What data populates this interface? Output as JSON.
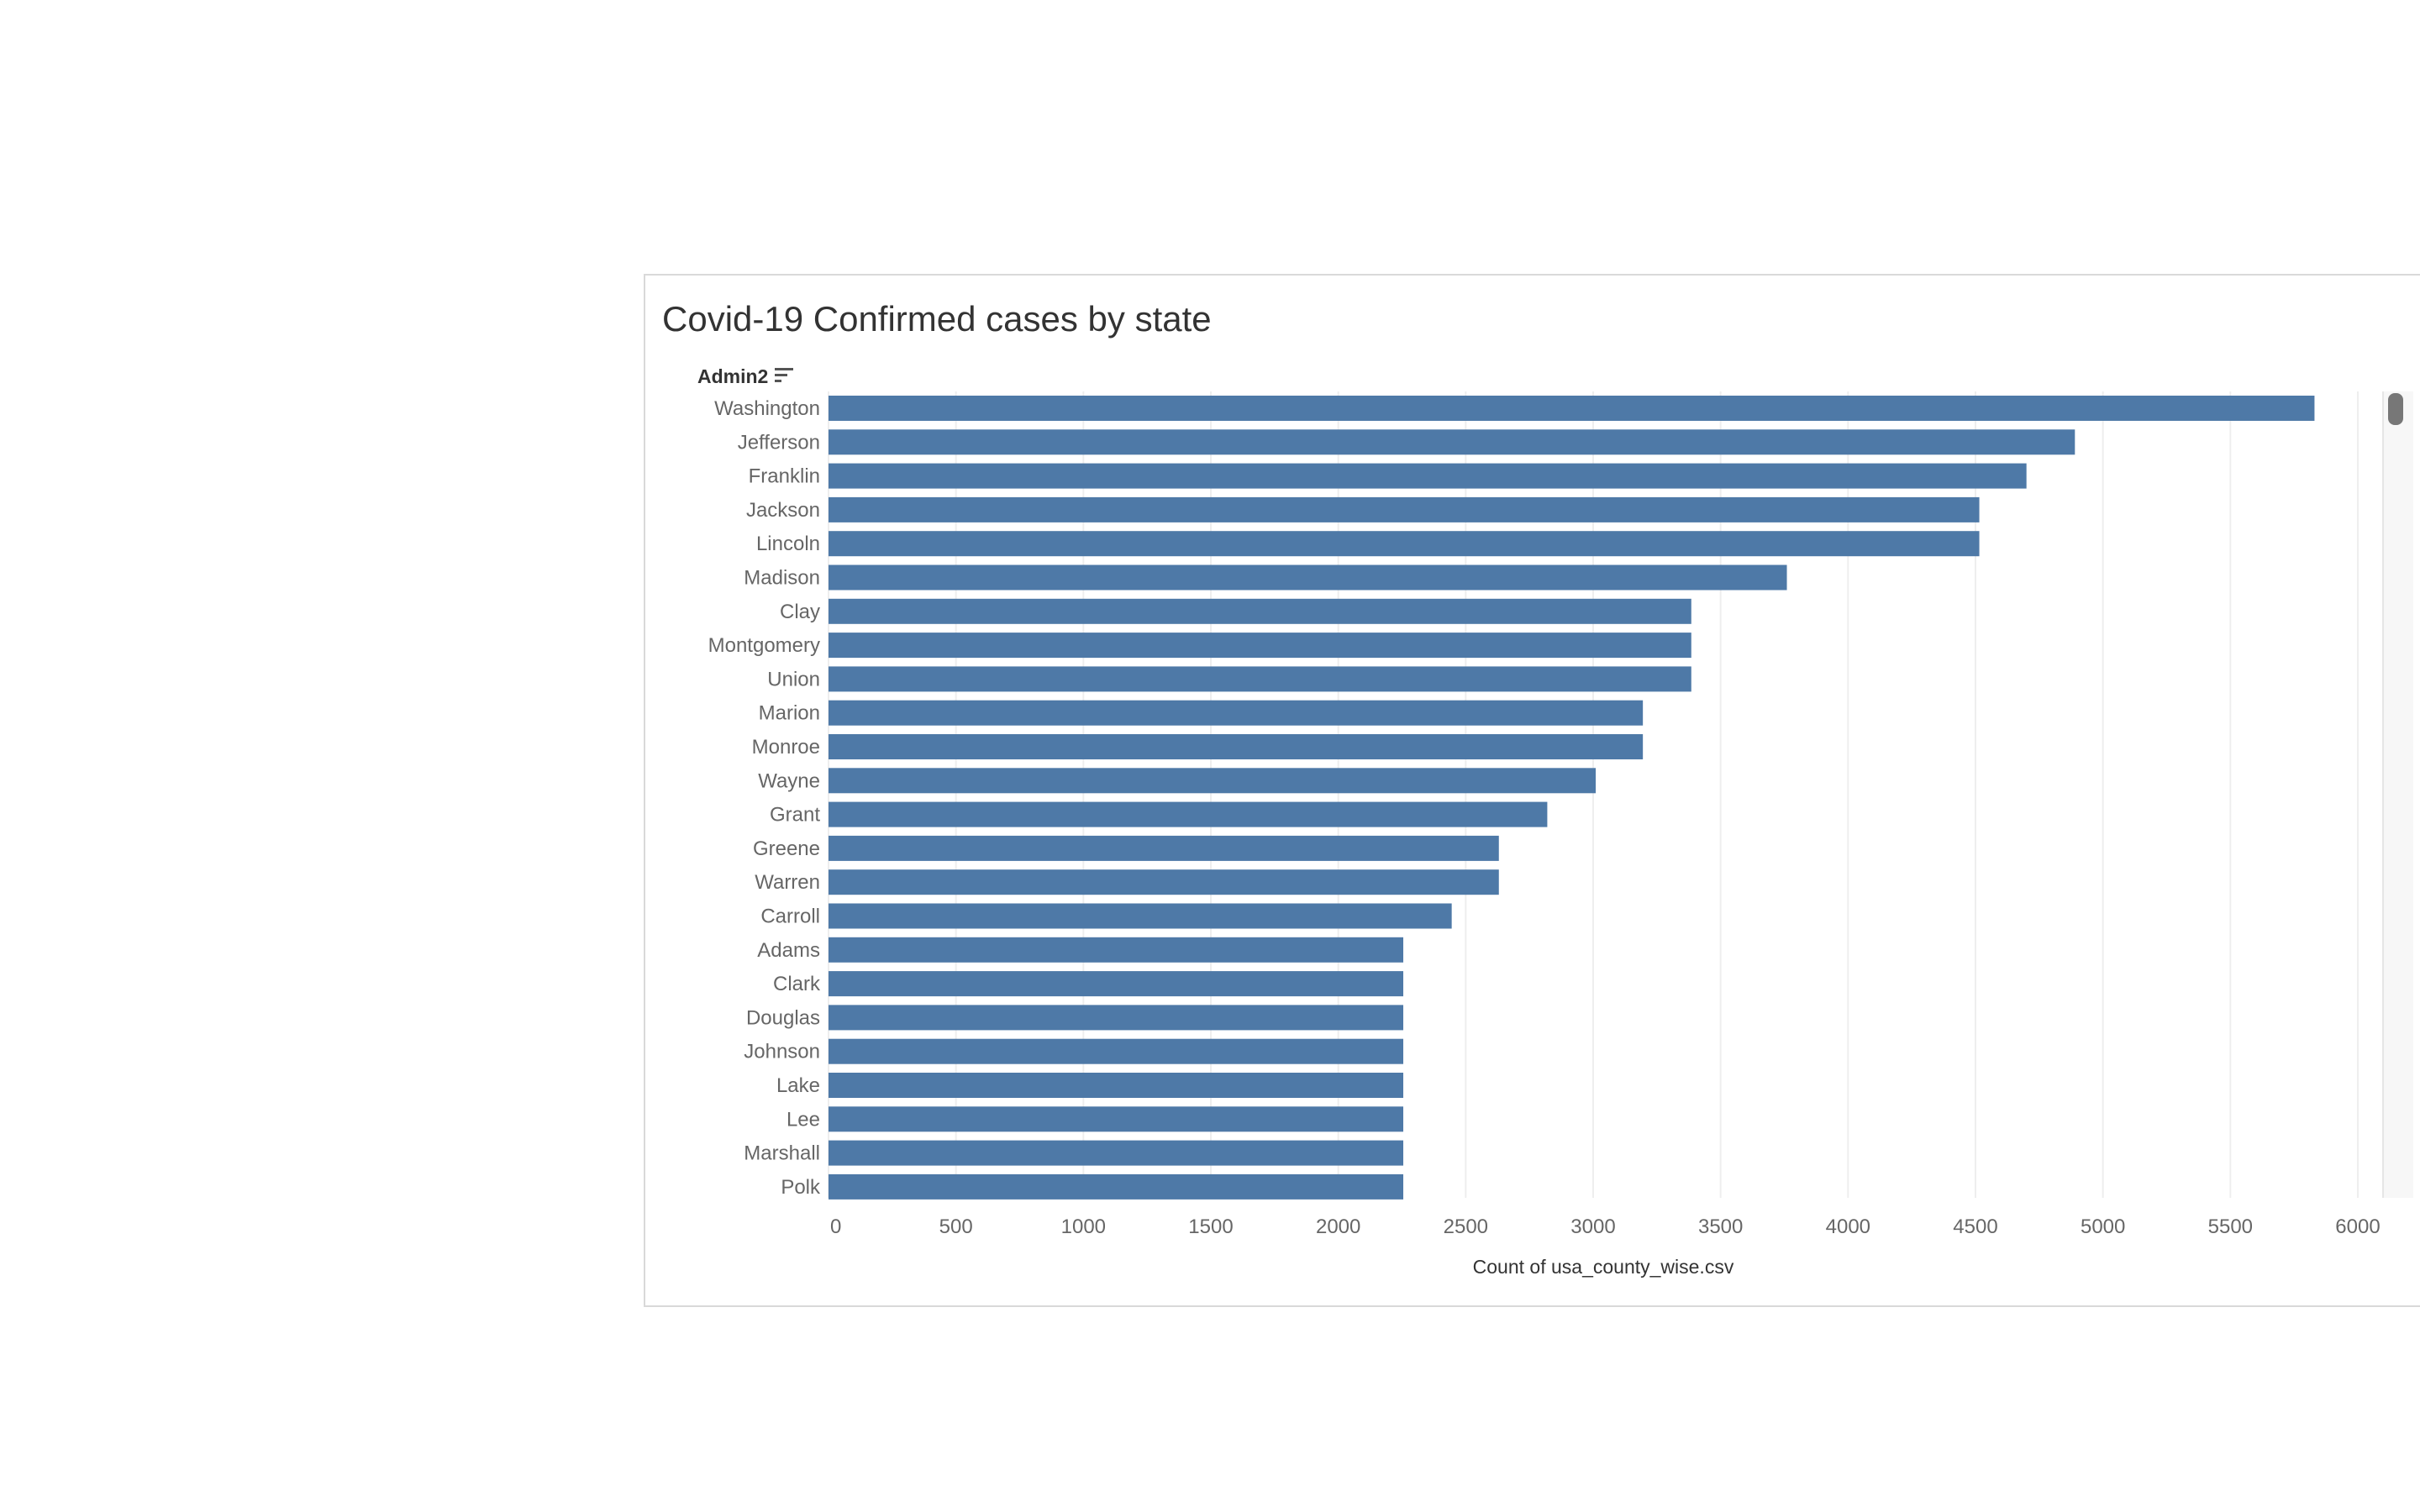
{
  "chart_data": {
    "type": "bar",
    "orientation": "horizontal",
    "title": "Covid-19 Confirmed cases by state",
    "category_header": "Admin2",
    "xlabel": "Count of usa_county_wise.csv",
    "categories": [
      "Washington",
      "Jefferson",
      "Franklin",
      "Jackson",
      "Lincoln",
      "Madison",
      "Clay",
      "Montgomery",
      "Union",
      "Marion",
      "Monroe",
      "Wayne",
      "Grant",
      "Greene",
      "Warren",
      "Carroll",
      "Adams",
      "Clark",
      "Douglas",
      "Johnson",
      "Lake",
      "Lee",
      "Marshall",
      "Polk"
    ],
    "values": [
      5830,
      4890,
      4700,
      4515,
      4515,
      3760,
      3385,
      3385,
      3385,
      3195,
      3195,
      3010,
      2820,
      2630,
      2630,
      2445,
      2255,
      2255,
      2255,
      2255,
      2255,
      2255,
      2255,
      2255
    ],
    "xlim": [
      0,
      6000
    ],
    "xticks": [
      0,
      500,
      1000,
      1500,
      2000,
      2500,
      3000,
      3500,
      4000,
      4500,
      5000,
      5500,
      6000
    ],
    "grid": true,
    "color": "#4e79a7"
  }
}
